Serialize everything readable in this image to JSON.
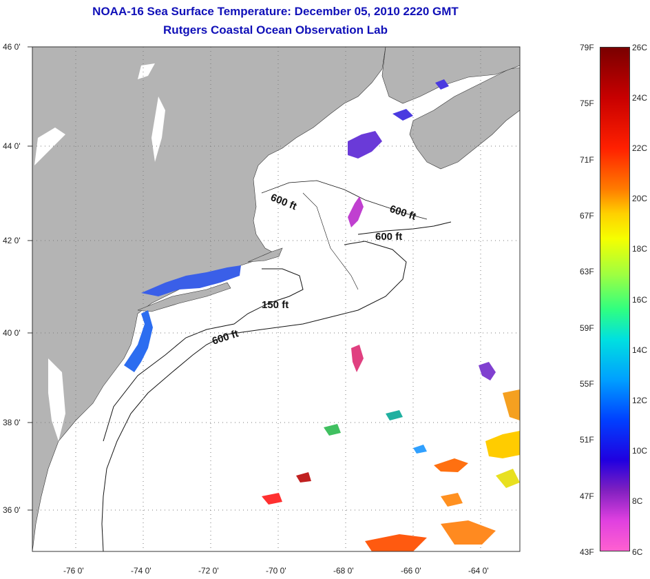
{
  "title": {
    "line1": "NOAA-16 Sea Surface Temperature:  December 05, 2010 2220 GMT",
    "line2": "Rutgers Coastal Ocean Observation Lab"
  },
  "map": {
    "y_ticks": [
      "46 0'",
      "44 0'",
      "42 0'",
      "40 0'",
      "38 0'",
      "36 0'"
    ],
    "x_ticks": [
      "-76 0'",
      "-74 0'",
      "-72 0'",
      "-70 0'",
      "-68 0'",
      "-66 0'",
      "-64 0'"
    ],
    "contour_labels": [
      "600 ft",
      "600 ft",
      "600 ft",
      "150 ft",
      "600 ft"
    ],
    "colors": {
      "land": "#b4b4b4",
      "ocean": "#ffffff"
    }
  },
  "colorbar": {
    "fahrenheit": [
      "79F",
      "75F",
      "71F",
      "67F",
      "63F",
      "59F",
      "55F",
      "51F",
      "47F",
      "43F"
    ],
    "celsius": [
      "26C",
      "24C",
      "22C",
      "20C",
      "18C",
      "16C",
      "14C",
      "12C",
      "10C",
      "8C",
      "6C"
    ]
  }
}
